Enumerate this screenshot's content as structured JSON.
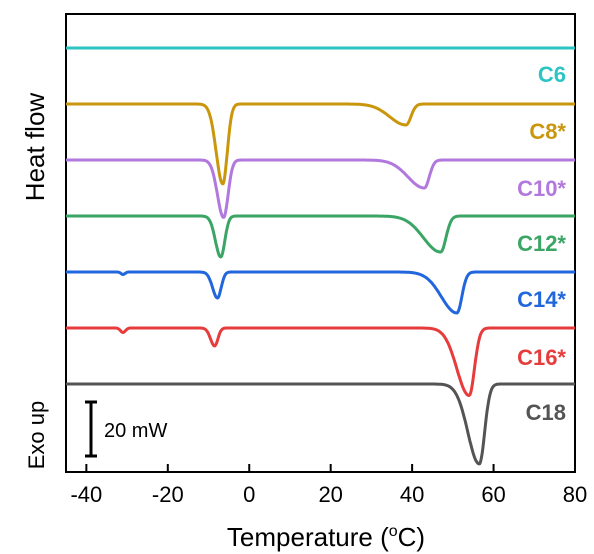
{
  "chart_data": {
    "type": "line",
    "title": "",
    "xlabel": "Temperature (",
    "xlabel_sup": "o",
    "xlabel_tail": "C)",
    "ylabel": "Heat flow",
    "ylabel_secondary": "Exo up",
    "xlim": [
      -45,
      80
    ],
    "x_ticks": [
      -40,
      -20,
      0,
      20,
      40,
      60,
      80
    ],
    "x_tick_labels": [
      "-40",
      "-20",
      "0",
      "20",
      "40",
      "60",
      "80"
    ],
    "grid": false,
    "scale_bar_label": "20 mW",
    "series": [
      {
        "name": "C6",
        "color": "#2ec4c4",
        "offset": 0,
        "baseline_slope": 0,
        "peaks": []
      },
      {
        "name": "C8*",
        "color": "#c9960c",
        "offset": 1,
        "baseline_slope": 0,
        "peaks": [
          {
            "center": -6.5,
            "depth": 16,
            "width_left": 1.6,
            "width_right": 1.1
          },
          {
            "center": 38.5,
            "depth": 4.2,
            "width_left": 4.0,
            "width_right": 1.2
          }
        ]
      },
      {
        "name": "C10*",
        "color": "#b178dd",
        "offset": 2,
        "baseline_slope": 0,
        "peaks": [
          {
            "center": -6.3,
            "depth": 11.5,
            "width_left": 1.5,
            "width_right": 1.1
          },
          {
            "center": 43.0,
            "depth": 5.6,
            "width_left": 4.0,
            "width_right": 1.2
          }
        ]
      },
      {
        "name": "C12*",
        "color": "#3aa565",
        "offset": 3,
        "baseline_slope": 0.008,
        "peaks": [
          {
            "center": -7.0,
            "depth": 8.2,
            "width_left": 1.3,
            "width_right": 1.0
          },
          {
            "center": 47.0,
            "depth": 7.2,
            "width_left": 4.2,
            "width_right": 1.3
          }
        ]
      },
      {
        "name": "C14*",
        "color": "#2266dd",
        "offset": 4,
        "baseline_slope": 0.012,
        "peaks": [
          {
            "center": -31.0,
            "depth": 0.5,
            "width_left": 0.5,
            "width_right": 0.5
          },
          {
            "center": -7.8,
            "depth": 5.2,
            "width_left": 1.2,
            "width_right": 0.9
          },
          {
            "center": 51.0,
            "depth": 8.2,
            "width_left": 3.8,
            "width_right": 1.2
          }
        ]
      },
      {
        "name": "C16*",
        "color": "#e63c3c",
        "offset": 5,
        "baseline_slope": 0.01,
        "peaks": [
          {
            "center": -31.0,
            "depth": 0.9,
            "width_left": 0.6,
            "width_right": 0.6
          },
          {
            "center": -8.5,
            "depth": 3.6,
            "width_left": 1.0,
            "width_right": 0.8
          },
          {
            "center": 54.0,
            "depth": 13.5,
            "width_left": 3.0,
            "width_right": 1.3
          }
        ]
      },
      {
        "name": "C18",
        "color": "#545454",
        "offset": 6,
        "baseline_slope": 0,
        "peaks": [
          {
            "center": 56.5,
            "depth": 16,
            "width_left": 2.8,
            "width_right": 1.3
          }
        ]
      }
    ]
  }
}
